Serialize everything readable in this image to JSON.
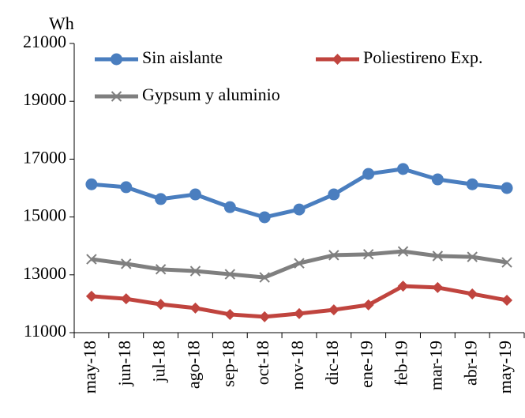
{
  "chart_data": {
    "type": "line",
    "y_unit": "Wh",
    "categories": [
      "may-18",
      "jun-18",
      "jul-18",
      "ago-18",
      "sep-18",
      "oct-18",
      "nov-18",
      "dic-18",
      "ene-19",
      "feb-19",
      "mar-19",
      "abr-19",
      "may-19"
    ],
    "series": [
      {
        "name": "Sin aislante",
        "color": "#4a7ebf",
        "marker": "circle",
        "values": [
          16130,
          16030,
          15620,
          15780,
          15340,
          14990,
          15260,
          15780,
          16490,
          16660,
          16300,
          16130,
          16000
        ]
      },
      {
        "name": "Poliestireno Exp.",
        "color": "#c0443e",
        "marker": "diamond",
        "values": [
          12260,
          12170,
          11980,
          11850,
          11630,
          11550,
          11660,
          11790,
          11960,
          12610,
          12560,
          12340,
          12120
        ]
      },
      {
        "name": "Gypsum y aluminio",
        "color": "#7f7f7f",
        "marker": "x",
        "values": [
          13540,
          13380,
          13190,
          13130,
          13020,
          12910,
          13400,
          13680,
          13710,
          13810,
          13650,
          13620,
          13430
        ]
      }
    ],
    "ylim": [
      11000,
      21000
    ],
    "yticks": [
      11000,
      13000,
      15000,
      17000,
      19000,
      21000
    ],
    "grid": false,
    "legend": "top"
  }
}
